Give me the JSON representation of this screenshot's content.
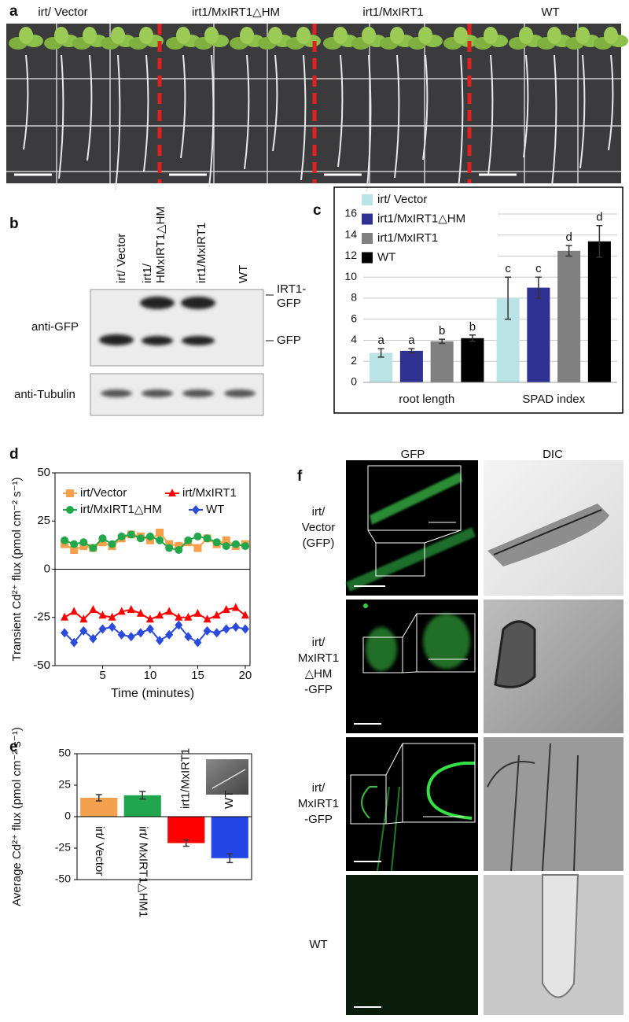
{
  "panel_labels": [
    "a",
    "b",
    "c",
    "d",
    "e",
    "f"
  ],
  "panel_a": {
    "columns": [
      "irt/ Vector",
      "irt1/MxIRT1△HM",
      "irt1/MxIRT1",
      "WT"
    ]
  },
  "panel_b": {
    "lanes": [
      [
        "irt/ Vector"
      ],
      [
        "irt1/",
        "HMxIRT1△HM"
      ],
      [
        "irt1/MxIRT1"
      ],
      [
        "WT"
      ]
    ],
    "antibodies": [
      "anti-GFP",
      "anti-Tubulin"
    ],
    "band_labels": [
      [
        "IRT1-",
        "GFP"
      ],
      [
        "GFP"
      ]
    ]
  },
  "panel_f": {
    "columns": [
      "GFP",
      "DIC"
    ],
    "rows": [
      [
        "irt/",
        "Vector",
        "(GFP)"
      ],
      [
        "irt/",
        "MxIRT1",
        "△HM",
        "-GFP"
      ],
      [
        "irt/",
        "MxIRT1",
        "-GFP"
      ],
      [
        "WT"
      ]
    ]
  },
  "chart_data": [
    {
      "type": "bar",
      "categories": [
        "root length",
        "SPAD index"
      ],
      "series": [
        {
          "name": "irt/ Vector",
          "color": "#b9e3e5",
          "values": [
            2.8,
            8.0
          ],
          "errors": [
            0.4,
            2.0
          ],
          "letters": [
            "a",
            "c"
          ]
        },
        {
          "name": "irt1/MxIRT1△HM",
          "color": "#2e3192",
          "values": [
            3.0,
            9.0
          ],
          "errors": [
            0.2,
            1.0
          ],
          "letters": [
            "a",
            "c"
          ]
        },
        {
          "name": "irt1/MxIRT1",
          "color": "#808080",
          "values": [
            3.9,
            12.5
          ],
          "errors": [
            0.2,
            0.5
          ],
          "letters": [
            "b",
            "d"
          ]
        },
        {
          "name": "WT",
          "color": "#000000",
          "values": [
            4.2,
            13.4
          ],
          "errors": [
            0.3,
            1.5
          ],
          "letters": [
            "b",
            "d"
          ]
        }
      ],
      "ylim": [
        0,
        16
      ],
      "yticks": [
        0,
        2,
        4,
        6,
        8,
        10,
        12,
        14,
        16
      ],
      "grid": true,
      "legend": "top-left"
    },
    {
      "type": "line",
      "xlabel": "Time (minutes)",
      "ylabel": "Transient Cd²⁺ flux (pmol cm⁻² s⁻¹)",
      "x": [
        1,
        2,
        3,
        4,
        5,
        6,
        7,
        8,
        9,
        10,
        11,
        12,
        13,
        14,
        15,
        16,
        17,
        18,
        19,
        20
      ],
      "series": [
        {
          "name": "irt/Vector",
          "color": "#f7a04b",
          "marker": "square",
          "values": [
            13,
            10,
            12,
            11,
            14,
            12,
            16,
            18,
            17,
            15,
            19,
            13,
            12,
            14,
            11,
            16,
            13,
            15,
            12,
            13
          ]
        },
        {
          "name": "irt/MxIRT1",
          "color": "#ff0000",
          "marker": "triangle",
          "values": [
            -25,
            -22,
            -26,
            -21,
            -24,
            -25,
            -22,
            -21,
            -23,
            -26,
            -24,
            -22,
            -25,
            -25,
            -23,
            -26,
            -24,
            -21,
            -20,
            -24
          ]
        },
        {
          "name": "irt/MxIRT1△HM",
          "color": "#22a84a",
          "marker": "circle",
          "values": [
            15,
            13,
            14,
            11,
            16,
            13,
            17,
            18,
            16,
            17,
            15,
            11,
            10,
            15,
            17,
            16,
            14,
            12,
            13,
            12
          ]
        },
        {
          "name": "WT",
          "color": "#2b4bdc",
          "marker": "diamond",
          "values": [
            -33,
            -38,
            -32,
            -36,
            -31,
            -30,
            -34,
            -35,
            -33,
            -31,
            -37,
            -34,
            -29,
            -35,
            -38,
            -32,
            -33,
            -31,
            -30,
            -31
          ]
        }
      ],
      "xlim": [
        0,
        20.5
      ],
      "xticks": [
        5,
        10,
        15,
        20
      ],
      "ylim": [
        -50,
        50
      ],
      "yticks": [
        -50,
        -25,
        0,
        25,
        50
      ]
    },
    {
      "type": "bar",
      "ylabel": "Average Cd²⁺ flux (pmol cm⁻² s⁻¹)",
      "categories": [
        "irt/ Vector",
        "irt/ MxIRT1△HM1",
        "irt1/MxIRT1",
        "WT"
      ],
      "values": [
        15,
        17,
        -21,
        -33
      ],
      "errors": [
        2.5,
        3,
        2.5,
        3.5
      ],
      "colors": [
        "#f4a14f",
        "#1fa64e",
        "#ff0000",
        "#2446e6"
      ],
      "ylim": [
        -50,
        50
      ],
      "yticks": [
        -50,
        -25,
        0,
        25,
        50
      ]
    }
  ]
}
